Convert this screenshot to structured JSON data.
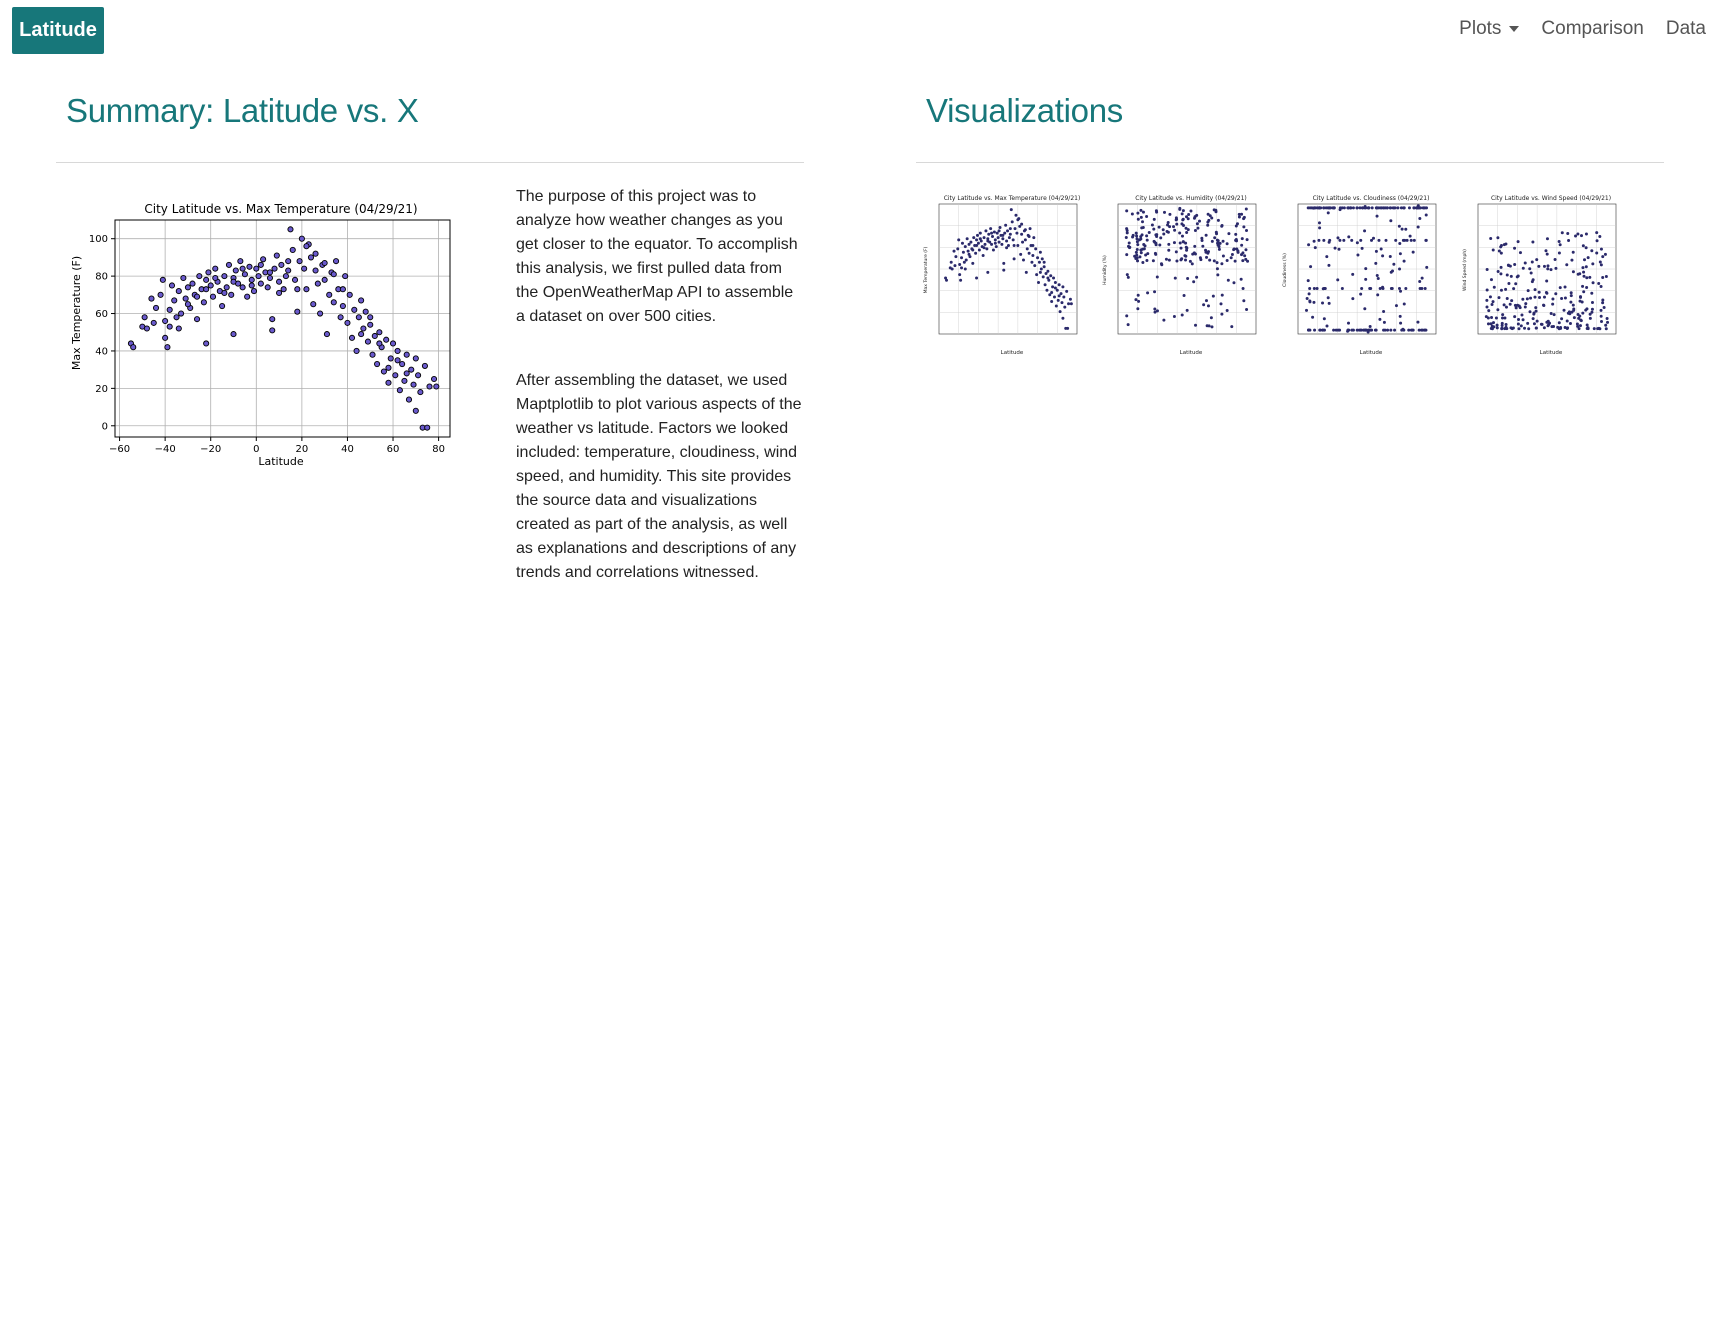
{
  "navbar": {
    "brand": "Latitude",
    "items": [
      {
        "label": "Plots",
        "dropdown": true
      },
      {
        "label": "Comparison"
      },
      {
        "label": "Data"
      }
    ]
  },
  "summary": {
    "heading": "Summary: Latitude vs. X",
    "paragraphs": [
      "The purpose of this project was to analyze how weather changes as you get closer to the equator. To accomplish this analysis, we first pulled data from the OpenWeatherMap API to assemble a dataset on over 500 cities.",
      "After assembling the dataset, we used Maptplotlib to plot various aspects of the weather vs latitude. Factors we looked included: temperature, cloudiness, wind speed, and humidity. This site provides the source data and visualizations created as part of the analysis, as well as explanations and descriptions of any trends and correlations witnessed."
    ]
  },
  "visualizations": {
    "heading": "Visualizations",
    "thumbnails": [
      {
        "title": "City Latitude vs. Max Temperature (04/29/21)",
        "ylabel": "Max Temperature (F)",
        "xlabel": "Latitude",
        "kind": "temp"
      },
      {
        "title": "City Latitude vs. Humidity (04/29/21)",
        "ylabel": "Humidity (%)",
        "xlabel": "Latitude",
        "kind": "humidity"
      },
      {
        "title": "City Latitude vs. Cloudiness (04/29/21)",
        "ylabel": "Cloudiness (%)",
        "xlabel": "Latitude",
        "kind": "cloud"
      },
      {
        "title": "City Latitude vs. Wind Speed (04/29/21)",
        "ylabel": "Wind Speed (mph)",
        "xlabel": "Latitude",
        "kind": "wind"
      }
    ]
  },
  "chart_data": {
    "type": "scatter",
    "title": "City Latitude vs. Max Temperature (04/29/21)",
    "xlabel": "Latitude",
    "ylabel": "Max Temperature (F)",
    "xlim": [
      -62,
      85
    ],
    "ylim": [
      -6,
      110
    ],
    "xticks": [
      -60,
      -40,
      -20,
      0,
      20,
      40,
      60,
      80
    ],
    "yticks": [
      0,
      20,
      40,
      60,
      80,
      100
    ],
    "grid": true,
    "marker_color": "#6a5acd",
    "marker_edge": "#000000",
    "points": [
      [
        -55,
        44
      ],
      [
        -54,
        42
      ],
      [
        -50,
        53
      ],
      [
        -49,
        58
      ],
      [
        -48,
        52
      ],
      [
        -46,
        68
      ],
      [
        -45,
        55
      ],
      [
        -44,
        63
      ],
      [
        -42,
        70
      ],
      [
        -41,
        78
      ],
      [
        -40,
        47
      ],
      [
        -40,
        56
      ],
      [
        -39,
        42
      ],
      [
        -38,
        62
      ],
      [
        -38,
        53
      ],
      [
        -37,
        75
      ],
      [
        -36,
        67
      ],
      [
        -35,
        58
      ],
      [
        -34,
        72
      ],
      [
        -33,
        60
      ],
      [
        -32,
        79
      ],
      [
        -31,
        68
      ],
      [
        -30,
        74
      ],
      [
        -29,
        63
      ],
      [
        -28,
        76
      ],
      [
        -27,
        70
      ],
      [
        -26,
        57
      ],
      [
        -25,
        80
      ],
      [
        -24,
        73
      ],
      [
        -23,
        66
      ],
      [
        -22,
        44
      ],
      [
        -22,
        78
      ],
      [
        -21,
        82
      ],
      [
        -20,
        75
      ],
      [
        -19,
        69
      ],
      [
        -18,
        84
      ],
      [
        -17,
        77
      ],
      [
        -16,
        72
      ],
      [
        -15,
        64
      ],
      [
        -14,
        80
      ],
      [
        -13,
        74
      ],
      [
        -12,
        86
      ],
      [
        -11,
        70
      ],
      [
        -10,
        49
      ],
      [
        -10,
        79
      ],
      [
        -9,
        83
      ],
      [
        -8,
        76
      ],
      [
        -7,
        88
      ],
      [
        -6,
        74
      ],
      [
        -5,
        81
      ],
      [
        -4,
        69
      ],
      [
        -3,
        85
      ],
      [
        -2,
        78
      ],
      [
        -1,
        72
      ],
      [
        0,
        84
      ],
      [
        1,
        80
      ],
      [
        2,
        76
      ],
      [
        3,
        89
      ],
      [
        4,
        82
      ],
      [
        5,
        74
      ],
      [
        6,
        79
      ],
      [
        7,
        51
      ],
      [
        7,
        57
      ],
      [
        8,
        84
      ],
      [
        9,
        91
      ],
      [
        10,
        77
      ],
      [
        11,
        86
      ],
      [
        12,
        73
      ],
      [
        13,
        80
      ],
      [
        14,
        83
      ],
      [
        15,
        105
      ],
      [
        16,
        94
      ],
      [
        17,
        78
      ],
      [
        18,
        61
      ],
      [
        19,
        88
      ],
      [
        20,
        100
      ],
      [
        21,
        84
      ],
      [
        22,
        73
      ],
      [
        23,
        97
      ],
      [
        24,
        90
      ],
      [
        25,
        65
      ],
      [
        26,
        83
      ],
      [
        27,
        76
      ],
      [
        28,
        60
      ],
      [
        29,
        86
      ],
      [
        30,
        78
      ],
      [
        31,
        49
      ],
      [
        32,
        70
      ],
      [
        33,
        82
      ],
      [
        34,
        66
      ],
      [
        35,
        88
      ],
      [
        36,
        73
      ],
      [
        37,
        58
      ],
      [
        38,
        64
      ],
      [
        39,
        80
      ],
      [
        40,
        55
      ],
      [
        41,
        70
      ],
      [
        42,
        47
      ],
      [
        43,
        62
      ],
      [
        44,
        40
      ],
      [
        45,
        58
      ],
      [
        46,
        67
      ],
      [
        47,
        52
      ],
      [
        48,
        61
      ],
      [
        49,
        45
      ],
      [
        50,
        54
      ],
      [
        51,
        38
      ],
      [
        52,
        48
      ],
      [
        53,
        33
      ],
      [
        54,
        50
      ],
      [
        55,
        42
      ],
      [
        56,
        29
      ],
      [
        57,
        46
      ],
      [
        58,
        23
      ],
      [
        59,
        36
      ],
      [
        60,
        44
      ],
      [
        61,
        27
      ],
      [
        62,
        40
      ],
      [
        63,
        19
      ],
      [
        64,
        33
      ],
      [
        65,
        24
      ],
      [
        66,
        38
      ],
      [
        67,
        14
      ],
      [
        68,
        30
      ],
      [
        69,
        22
      ],
      [
        70,
        8
      ],
      [
        71,
        27
      ],
      [
        72,
        18
      ],
      [
        73,
        -1
      ],
      [
        74,
        32
      ],
      [
        75,
        -1
      ],
      [
        76,
        21
      ],
      [
        78,
        25
      ],
      [
        79,
        21
      ],
      [
        58,
        31
      ],
      [
        62,
        35
      ],
      [
        66,
        28
      ],
      [
        70,
        36
      ],
      [
        54,
        44
      ],
      [
        50,
        58
      ],
      [
        46,
        49
      ],
      [
        38,
        73
      ],
      [
        34,
        81
      ],
      [
        30,
        87
      ],
      [
        26,
        92
      ],
      [
        22,
        96
      ],
      [
        18,
        73
      ],
      [
        14,
        88
      ],
      [
        10,
        71
      ],
      [
        6,
        82
      ],
      [
        2,
        86
      ],
      [
        -2,
        75
      ],
      [
        -6,
        84
      ],
      [
        -10,
        77
      ],
      [
        -14,
        71
      ],
      [
        -18,
        79
      ],
      [
        -22,
        73
      ],
      [
        -26,
        69
      ],
      [
        -30,
        65
      ],
      [
        -34,
        52
      ]
    ]
  }
}
